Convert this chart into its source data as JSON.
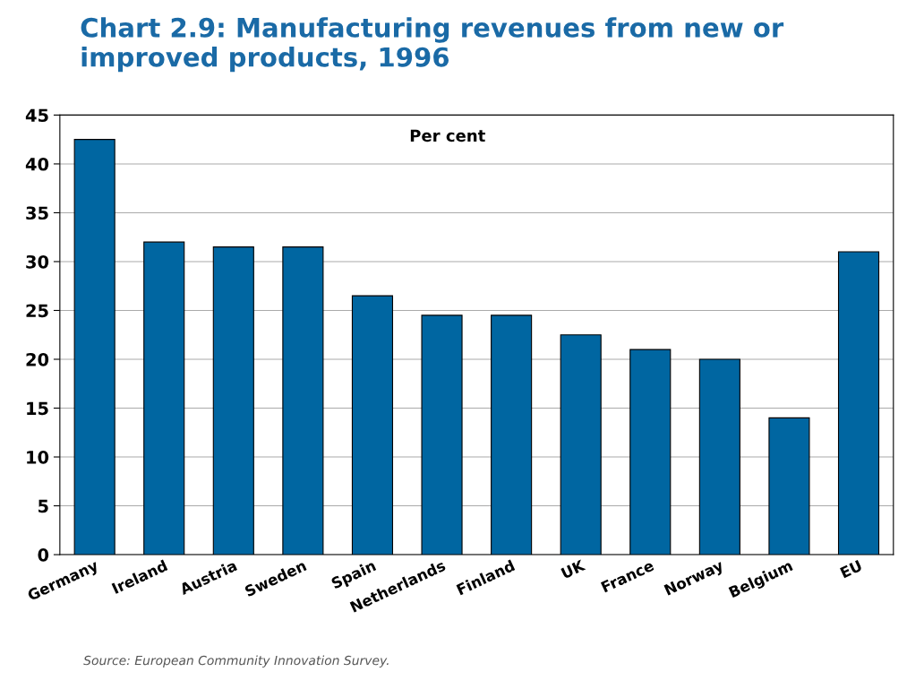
{
  "chart_data": {
    "type": "bar",
    "title": "Chart 2.9: Manufacturing revenues from new or improved products, 1996",
    "ylabel": "Per cent",
    "categories": [
      "Germany",
      "Ireland",
      "Austria",
      "Sweden",
      "Spain",
      "Netherlands",
      "Finland",
      "UK",
      "France",
      "Norway",
      "Belgium",
      "EU"
    ],
    "values": [
      42.5,
      32,
      31.5,
      31.5,
      26.5,
      24.5,
      24.5,
      22.5,
      21,
      20,
      14,
      31
    ],
    "color": "#0066a1",
    "ylim": [
      0,
      45
    ],
    "yticks": [
      0,
      5,
      10,
      15,
      20,
      25,
      30,
      35,
      40,
      45
    ],
    "grid": "y",
    "legend": false,
    "annotations": [
      "Source: European Community Innovation Survey."
    ]
  }
}
